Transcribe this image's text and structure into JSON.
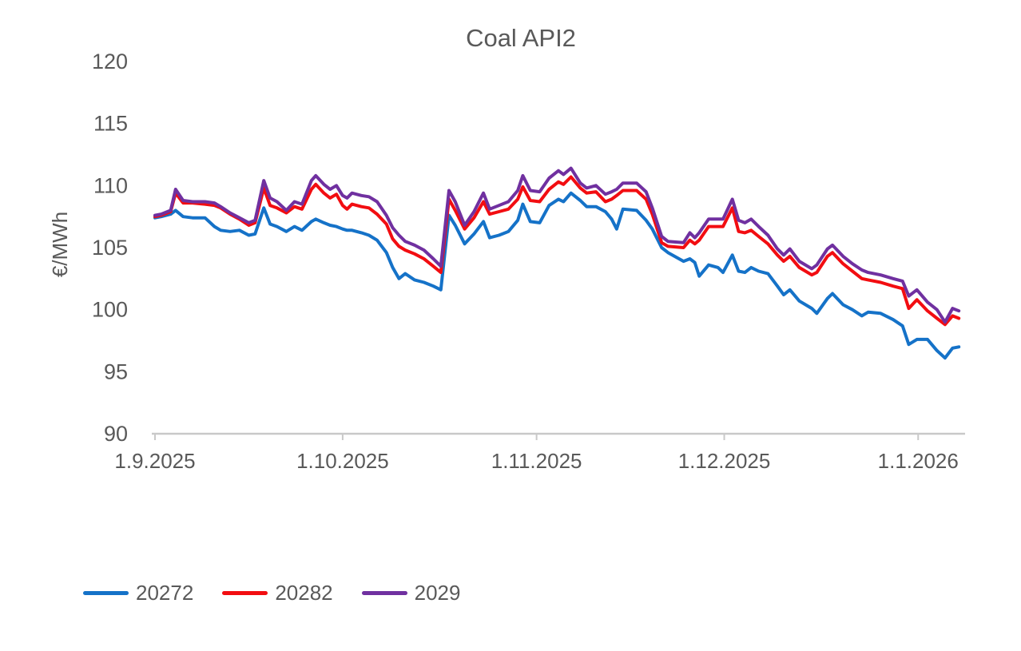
{
  "chart_data": {
    "type": "line",
    "title": "Coal API2",
    "ylabel": "€/MWh",
    "xlabel": "",
    "ylim": [
      90,
      120
    ],
    "y_ticks": [
      120,
      115,
      110,
      105,
      100,
      95,
      90
    ],
    "x_axis_unit": "days since 1.9.2025",
    "x_ticks": [
      {
        "label": "1.9.2025",
        "day": 0
      },
      {
        "label": "1.10.2025",
        "day": 30
      },
      {
        "label": "1.11.2025",
        "day": 61
      },
      {
        "label": "1.12.2025",
        "day": 91
      },
      {
        "label": "1.1.2026",
        "day": 122
      }
    ],
    "grid": false,
    "legend_position": "bottom-left",
    "days": [
      0,
      1,
      2.5,
      3.3,
      4.5,
      6,
      8,
      9.5,
      10.5,
      12,
      13.5,
      15,
      16,
      17.4,
      18.4,
      19.5,
      21,
      22.3,
      23.5,
      25,
      25.7,
      27,
      28,
      29,
      30,
      30.7,
      31.5,
      33,
      34.2,
      35.5,
      37,
      38,
      39,
      40,
      41.5,
      43,
      44.5,
      45.7,
      47,
      48,
      49.5,
      51,
      52.5,
      53.5,
      55,
      56.5,
      58,
      58.8,
      60,
      61.5,
      63,
      64.5,
      65.3,
      66.5,
      68,
      69,
      70.5,
      72,
      73,
      73.8,
      74.8,
      77,
      78.5,
      79.5,
      81,
      82,
      84.5,
      85.5,
      86.3,
      87,
      88.5,
      90,
      90.8,
      92.3,
      93.3,
      94.3,
      95.3,
      96.5,
      98,
      99.5,
      100.5,
      101.5,
      103,
      105,
      105.8,
      107.5,
      108.3,
      110,
      111.5,
      113,
      114,
      116,
      118,
      119.5,
      120.5,
      121.8,
      123.5,
      125,
      126.3,
      127.5,
      128.5
    ],
    "series": [
      {
        "name": "20272",
        "color": "#1572c8",
        "values": [
          107.4,
          107.5,
          107.7,
          108.0,
          107.5,
          107.4,
          107.4,
          106.7,
          106.4,
          106.3,
          106.4,
          106.0,
          106.1,
          108.2,
          106.9,
          106.7,
          106.3,
          106.7,
          106.4,
          107.1,
          107.3,
          107.0,
          106.8,
          106.7,
          106.5,
          106.4,
          106.4,
          106.2,
          106.0,
          105.6,
          104.6,
          103.4,
          102.5,
          102.9,
          102.4,
          102.2,
          101.9,
          101.6,
          107.6,
          106.8,
          105.3,
          106.1,
          107.1,
          105.8,
          106.0,
          106.3,
          107.2,
          108.5,
          107.1,
          107.0,
          108.4,
          108.9,
          108.7,
          109.4,
          108.8,
          108.3,
          108.3,
          107.9,
          107.3,
          106.5,
          108.1,
          108.0,
          107.2,
          106.5,
          105.0,
          104.6,
          103.9,
          104.1,
          103.8,
          102.7,
          103.6,
          103.4,
          103.0,
          104.4,
          103.1,
          103.0,
          103.4,
          103.1,
          102.9,
          101.9,
          101.2,
          101.6,
          100.7,
          100.1,
          99.7,
          100.9,
          101.3,
          100.4,
          100.0,
          99.5,
          99.8,
          99.7,
          99.2,
          98.7,
          97.2,
          97.6,
          97.6,
          96.7,
          96.1,
          96.9,
          97.0
        ]
      },
      {
        "name": "20282",
        "color": "#f20d11",
        "values": [
          107.5,
          107.6,
          107.9,
          109.4,
          108.6,
          108.6,
          108.5,
          108.4,
          108.2,
          107.7,
          107.3,
          106.8,
          107.0,
          109.8,
          108.4,
          108.2,
          107.8,
          108.3,
          108.1,
          109.7,
          110.1,
          109.4,
          109.0,
          109.3,
          108.4,
          108.1,
          108.5,
          108.3,
          108.2,
          107.7,
          106.9,
          105.7,
          105.1,
          104.8,
          104.5,
          104.1,
          103.5,
          103.0,
          108.9,
          108.0,
          106.5,
          107.4,
          108.7,
          107.7,
          107.9,
          108.1,
          108.9,
          109.9,
          108.8,
          108.7,
          109.7,
          110.3,
          110.1,
          110.7,
          109.8,
          109.4,
          109.5,
          108.7,
          108.9,
          109.2,
          109.6,
          109.6,
          108.9,
          107.7,
          105.4,
          105.1,
          105.0,
          105.6,
          105.3,
          105.6,
          106.7,
          106.7,
          106.7,
          108.2,
          106.3,
          106.2,
          106.4,
          105.9,
          105.3,
          104.4,
          103.9,
          104.3,
          103.4,
          102.8,
          103.0,
          104.3,
          104.6,
          103.7,
          103.1,
          102.5,
          102.4,
          102.2,
          101.9,
          101.7,
          100.1,
          100.8,
          99.9,
          99.3,
          98.8,
          99.5,
          99.3
        ]
      },
      {
        "name": "2029",
        "color": "#7030a0",
        "values": [
          107.6,
          107.7,
          108.0,
          109.7,
          108.8,
          108.7,
          108.7,
          108.6,
          108.3,
          107.8,
          107.4,
          107.0,
          107.2,
          110.4,
          109.0,
          108.7,
          108.0,
          108.7,
          108.5,
          110.4,
          110.8,
          110.1,
          109.7,
          110.0,
          109.2,
          109.0,
          109.4,
          109.2,
          109.1,
          108.7,
          107.6,
          106.6,
          106.0,
          105.5,
          105.2,
          104.8,
          104.1,
          103.5,
          109.6,
          108.7,
          106.8,
          107.9,
          109.4,
          108.1,
          108.4,
          108.7,
          109.6,
          110.8,
          109.6,
          109.5,
          110.6,
          111.2,
          110.9,
          111.4,
          110.2,
          109.8,
          110.0,
          109.3,
          109.5,
          109.7,
          110.2,
          110.2,
          109.5,
          108.2,
          105.9,
          105.5,
          105.4,
          106.2,
          105.8,
          106.2,
          107.3,
          107.3,
          107.3,
          108.9,
          107.2,
          107.0,
          107.3,
          106.7,
          106.0,
          104.9,
          104.4,
          104.9,
          103.9,
          103.3,
          103.6,
          104.9,
          105.2,
          104.3,
          103.7,
          103.2,
          103.0,
          102.8,
          102.5,
          102.3,
          101.1,
          101.6,
          100.6,
          100.0,
          99.0,
          100.1,
          99.9
        ]
      }
    ]
  }
}
